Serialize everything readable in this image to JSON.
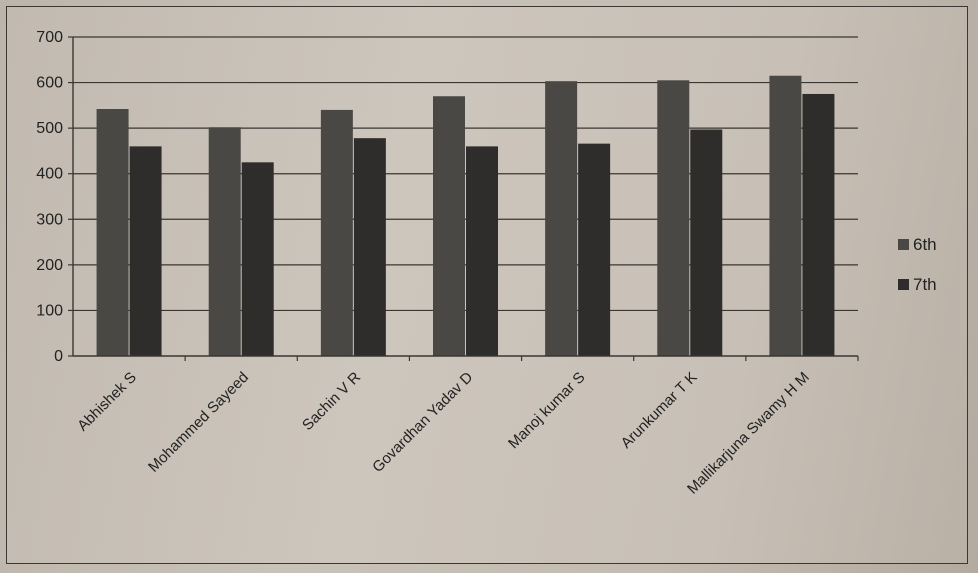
{
  "chart_data": {
    "type": "bar",
    "title": "",
    "xlabel": "",
    "ylabel": "",
    "ylim": [
      0,
      700
    ],
    "yticks": [
      0,
      100,
      200,
      300,
      400,
      500,
      600,
      700
    ],
    "grid": true,
    "legend_position": "right",
    "categories": [
      "Abhishek S",
      "Mohammed Sayeed",
      "Sachin V R",
      "Govardhan Yadav D",
      "Manoj  kumar S",
      "Arunkumar T K",
      "Mallikarjuna Swamy H M"
    ],
    "series": [
      {
        "name": "6th",
        "color": "#4a4845",
        "values": [
          542,
          502,
          540,
          570,
          603,
          605,
          615
        ]
      },
      {
        "name": "7th",
        "color": "#2f2d2b",
        "values": [
          460,
          425,
          478,
          460,
          466,
          497,
          575
        ]
      }
    ]
  }
}
